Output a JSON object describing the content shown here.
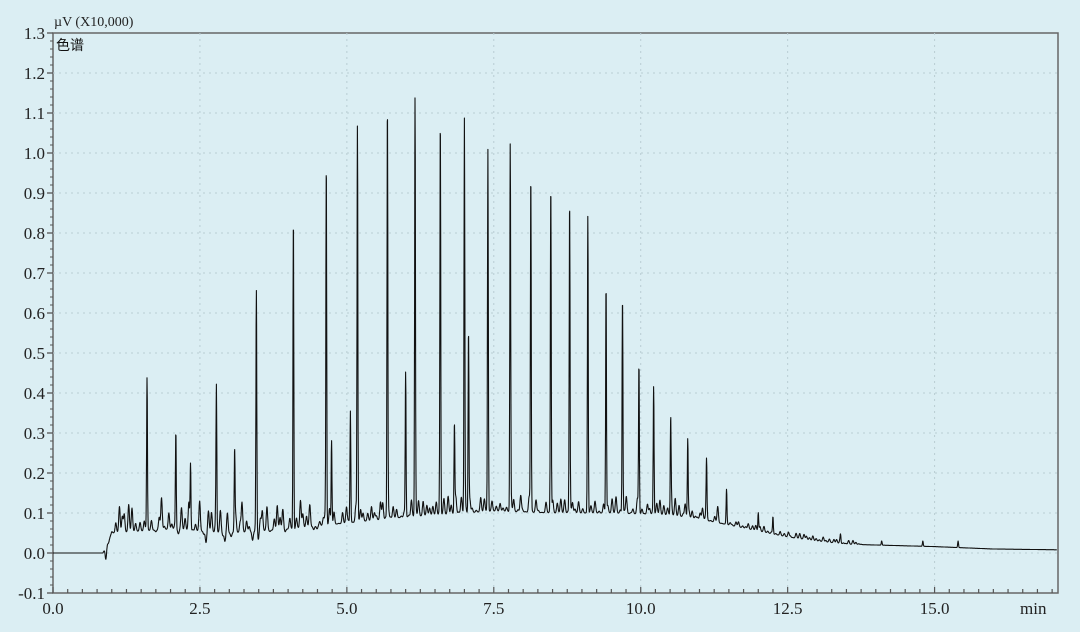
{
  "chart_data": {
    "type": "line",
    "title": "",
    "y_unit_label": "µV (X10,000)",
    "trace_label": "色谱",
    "xlabel": "min",
    "ylabel": "",
    "xlim": [
      0,
      17.1
    ],
    "ylim": [
      -0.1,
      1.3
    ],
    "x_ticks": [
      "0.0",
      "2.5",
      "5.0",
      "7.5",
      "10.0",
      "12.5",
      "15.0"
    ],
    "x_tick_values": [
      0,
      2.5,
      5,
      7.5,
      10,
      12.5,
      15
    ],
    "y_ticks": [
      "1.3",
      "1.2",
      "1.1",
      "1.0",
      "0.9",
      "0.8",
      "0.7",
      "0.6",
      "0.5",
      "0.4",
      "0.3",
      "0.2",
      "0.1",
      "0.0",
      "-0.1"
    ],
    "y_tick_values": [
      1.3,
      1.2,
      1.1,
      1.0,
      0.9,
      0.8,
      0.7,
      0.6,
      0.5,
      0.4,
      0.3,
      0.2,
      0.1,
      0.0,
      -0.1
    ],
    "grid": true,
    "colors": {
      "background": "#dbeef3",
      "trace": "#111111",
      "grid": "#b9cdd3",
      "axis": "#555555"
    },
    "baseline": {
      "x": [
        0,
        0.85,
        1.0,
        2.0,
        3.0,
        4.0,
        5.0,
        6.0,
        7.0,
        7.5,
        8.5,
        9.5,
        10.5,
        11.0,
        11.5,
        12.0,
        12.5,
        13.0,
        13.5,
        14.0,
        15.0,
        16.0,
        17.1
      ],
      "y": [
        0,
        0,
        0.05,
        0.06,
        0.05,
        0.06,
        0.075,
        0.09,
        0.1,
        0.105,
        0.1,
        0.1,
        0.095,
        0.085,
        0.07,
        0.055,
        0.04,
        0.03,
        0.022,
        0.02,
        0.016,
        0.01,
        0.008
      ]
    },
    "peaks": {
      "x": [
        1.6,
        2.09,
        2.34,
        2.78,
        3.09,
        3.46,
        4.09,
        4.65,
        4.74,
        5.06,
        5.18,
        5.69,
        6.0,
        6.16,
        6.59,
        6.83,
        7.0,
        7.07,
        7.4,
        7.78,
        8.13,
        8.47,
        8.79,
        9.1,
        9.41,
        9.69,
        9.97,
        10.22,
        10.51,
        10.8,
        11.12,
        11.46,
        12.0,
        12.25,
        13.4,
        14.1,
        14.8,
        15.4
      ],
      "y": [
        0.41,
        0.3,
        0.22,
        0.38,
        0.25,
        0.61,
        0.84,
        0.96,
        0.28,
        0.35,
        1.06,
        1.11,
        0.45,
        1.11,
        1.06,
        0.32,
        1.07,
        0.55,
        0.99,
        1.0,
        0.94,
        0.92,
        0.86,
        0.84,
        0.67,
        0.64,
        0.47,
        0.41,
        0.31,
        0.28,
        0.2,
        0.15,
        0.1,
        0.09,
        0.04,
        0.03,
        0.03,
        0.03
      ]
    }
  }
}
